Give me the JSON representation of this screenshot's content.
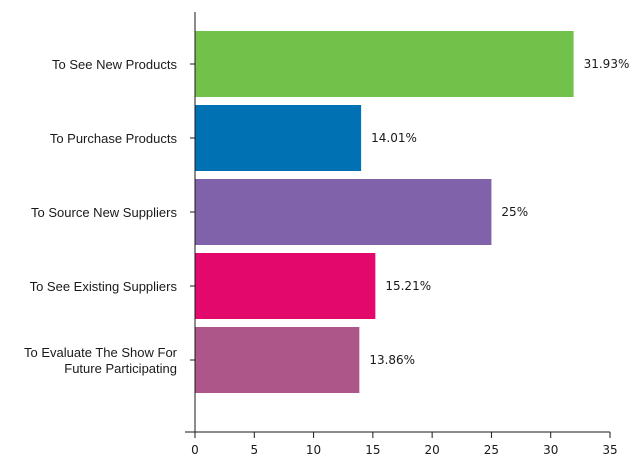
{
  "chart_data": {
    "type": "bar",
    "orientation": "horizontal",
    "categories": [
      [
        "To See New Products"
      ],
      [
        "To Purchase Products"
      ],
      [
        "To Source New Suppliers"
      ],
      [
        "To See Existing Suppliers"
      ],
      [
        "To Evaluate The Show For",
        "Future Participating"
      ]
    ],
    "values": [
      31.93,
      14.01,
      25,
      15.21,
      13.86
    ],
    "value_labels": [
      "31.93%",
      "14.01%",
      "25%",
      "15.21%",
      "13.86%"
    ],
    "colors": [
      "#72c14a",
      "#0071b2",
      "#8062aa",
      "#e2086c",
      "#ad5689"
    ],
    "xlim": [
      0,
      35
    ],
    "xticks": [
      "0",
      "5",
      "10",
      "15",
      "20",
      "25",
      "30",
      "35"
    ],
    "title": "",
    "xlabel": "",
    "ylabel": "",
    "grid": false,
    "legend": false
  }
}
